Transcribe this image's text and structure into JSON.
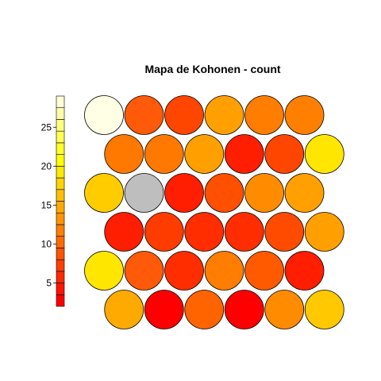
{
  "chart_data": {
    "type": "heatmap",
    "title": "Mapa de Kohonen - count",
    "grid": {
      "rows": 6,
      "cols": 6,
      "topology": "hexagonal"
    },
    "legend": {
      "placement": "left",
      "range": [
        2,
        29
      ],
      "ticks": [
        5,
        10,
        15,
        20,
        25
      ],
      "tick_labels": [
        "5",
        "10",
        "15",
        "20",
        "25"
      ],
      "colors": [
        "#FF0000",
        "#FF1500",
        "#FF2A00",
        "#FF3F00",
        "#FF5500",
        "#FF6A00",
        "#FF7F00",
        "#FF9400",
        "#FFAA00",
        "#FFBF00",
        "#FFD400",
        "#FFE900",
        "#FFFF00",
        "#FFFF2A",
        "#FFFF55",
        "#FFFF80",
        "#FFFFAA",
        "#FFFFD5"
      ]
    },
    "rows_top_to_bottom": [
      {
        "offset": false,
        "cells": [
          {
            "count": 29,
            "color": "#FFFFE6"
          },
          {
            "count": 8,
            "color": "#FF5A0A"
          },
          {
            "count": 6,
            "color": "#FF4600"
          },
          {
            "count": 14,
            "color": "#FFA000"
          },
          {
            "count": 11,
            "color": "#FF7D00"
          },
          {
            "count": 11,
            "color": "#FF8000"
          }
        ]
      },
      {
        "offset": true,
        "cells": [
          {
            "count": 11,
            "color": "#FF7800"
          },
          {
            "count": 11,
            "color": "#FF7800"
          },
          {
            "count": 14,
            "color": "#FFA000"
          },
          {
            "count": 3,
            "color": "#FF1E00"
          },
          {
            "count": 6,
            "color": "#FF4600"
          },
          {
            "count": 24,
            "color": "#FFE600"
          }
        ]
      },
      {
        "offset": false,
        "cells": [
          {
            "count": 20,
            "color": "#FFCC00"
          },
          {
            "count": null,
            "color": "#BEBEBE"
          },
          {
            "count": 3,
            "color": "#FF1E00"
          },
          {
            "count": 7,
            "color": "#FF5000"
          },
          {
            "count": 12,
            "color": "#FF8C00"
          },
          {
            "count": 15,
            "color": "#FFA000"
          }
        ]
      },
      {
        "offset": true,
        "cells": [
          {
            "count": 3,
            "color": "#FF1E00"
          },
          {
            "count": 5,
            "color": "#FF3C00"
          },
          {
            "count": 4,
            "color": "#FF2D00"
          },
          {
            "count": 4,
            "color": "#FF2D00"
          },
          {
            "count": 7,
            "color": "#FF4B00"
          },
          {
            "count": 14,
            "color": "#FFA000"
          }
        ]
      },
      {
        "offset": false,
        "cells": [
          {
            "count": 24,
            "color": "#FFE600"
          },
          {
            "count": 8,
            "color": "#FF5A0A"
          },
          {
            "count": 4,
            "color": "#FF2D00"
          },
          {
            "count": 11,
            "color": "#FF7D00"
          },
          {
            "count": 7,
            "color": "#FF5A00"
          },
          {
            "count": 3,
            "color": "#FF1E00"
          }
        ]
      },
      {
        "offset": true,
        "cells": [
          {
            "count": 16,
            "color": "#FFAA00"
          },
          {
            "count": 2,
            "color": "#FF0000"
          },
          {
            "count": 9,
            "color": "#FF6400"
          },
          {
            "count": 2,
            "color": "#FF0000"
          },
          {
            "count": 12,
            "color": "#FF8C00"
          },
          {
            "count": 19,
            "color": "#FFC800"
          }
        ]
      }
    ]
  }
}
